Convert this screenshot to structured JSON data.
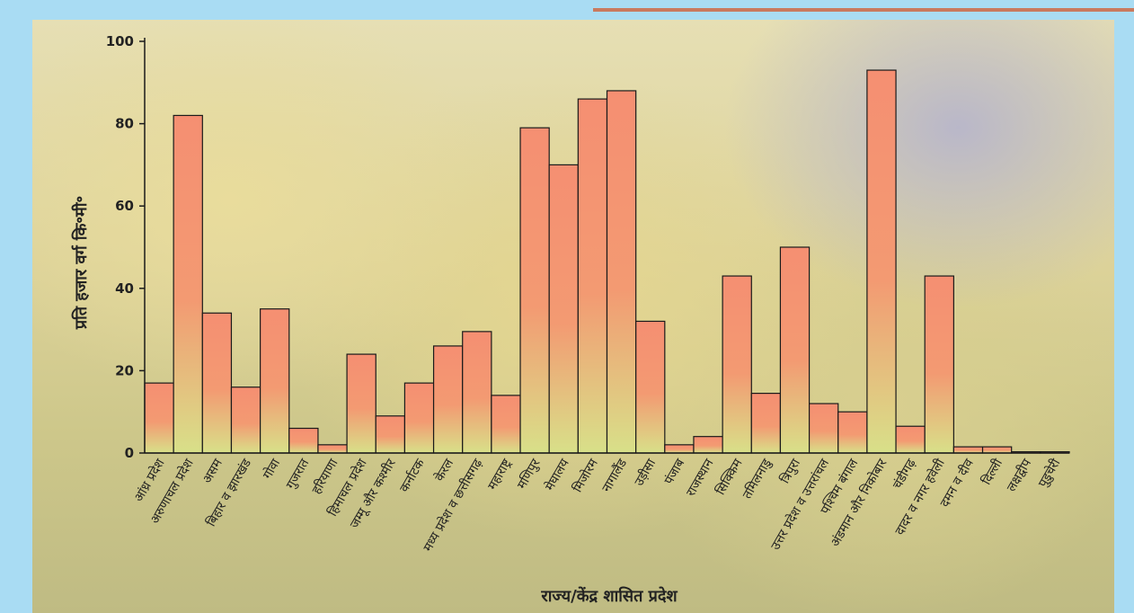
{
  "colors": {
    "bar_top": "#f58f72",
    "bar_bottom": "#d8e089",
    "bar_stroke": "#1a1a1a",
    "frame": "#a9dcf3",
    "rule": "#c97a5f"
  },
  "chart_data": {
    "type": "bar",
    "xlabel": "राज्य/केंद्र शासित प्रदेश",
    "ylabel": "प्रति हजार वर्ग कि॰मी॰",
    "ylim": [
      0,
      100
    ],
    "yticks": [
      "0",
      "20",
      "40",
      "60",
      "80",
      "100"
    ],
    "grid": false,
    "categories": [
      "आंध्र प्रदेश",
      "अरुणाचल प्रदेश",
      "असम",
      "बिहार व झारखंड",
      "गोवा",
      "गुजरात",
      "हरियाणा",
      "हिमाचल प्रदेश",
      "जम्मू और कश्मीर",
      "कर्नाटक",
      "केरल",
      "मध्य प्रदेश व छत्तीसगढ़",
      "महाराष्ट्र",
      "मणिपुर",
      "मेघालय",
      "मिजोरम",
      "नागालैंड",
      "उड़ीसा",
      "पंजाब",
      "राजस्थान",
      "सिक्किम",
      "तमिलनाडु",
      "त्रिपुरा",
      "उत्तर प्रदेश व उत्तरांचल",
      "पश्चिम बंगाल",
      "अंडमान और निकोबार",
      "चंडीगढ़",
      "दादर व नगर हवेली",
      "दमन व दीव",
      "दिल्ली",
      "लक्षद्वीप",
      "पुडुचेरी"
    ],
    "values": [
      17,
      82,
      34,
      16,
      35,
      6,
      2,
      24,
      9,
      17,
      26,
      29.5,
      14,
      79,
      70,
      86,
      88,
      32,
      2,
      4,
      43,
      14.5,
      50,
      12,
      10,
      93,
      6.5,
      43,
      1.5,
      1.5,
      0.3,
      0.3
    ]
  }
}
